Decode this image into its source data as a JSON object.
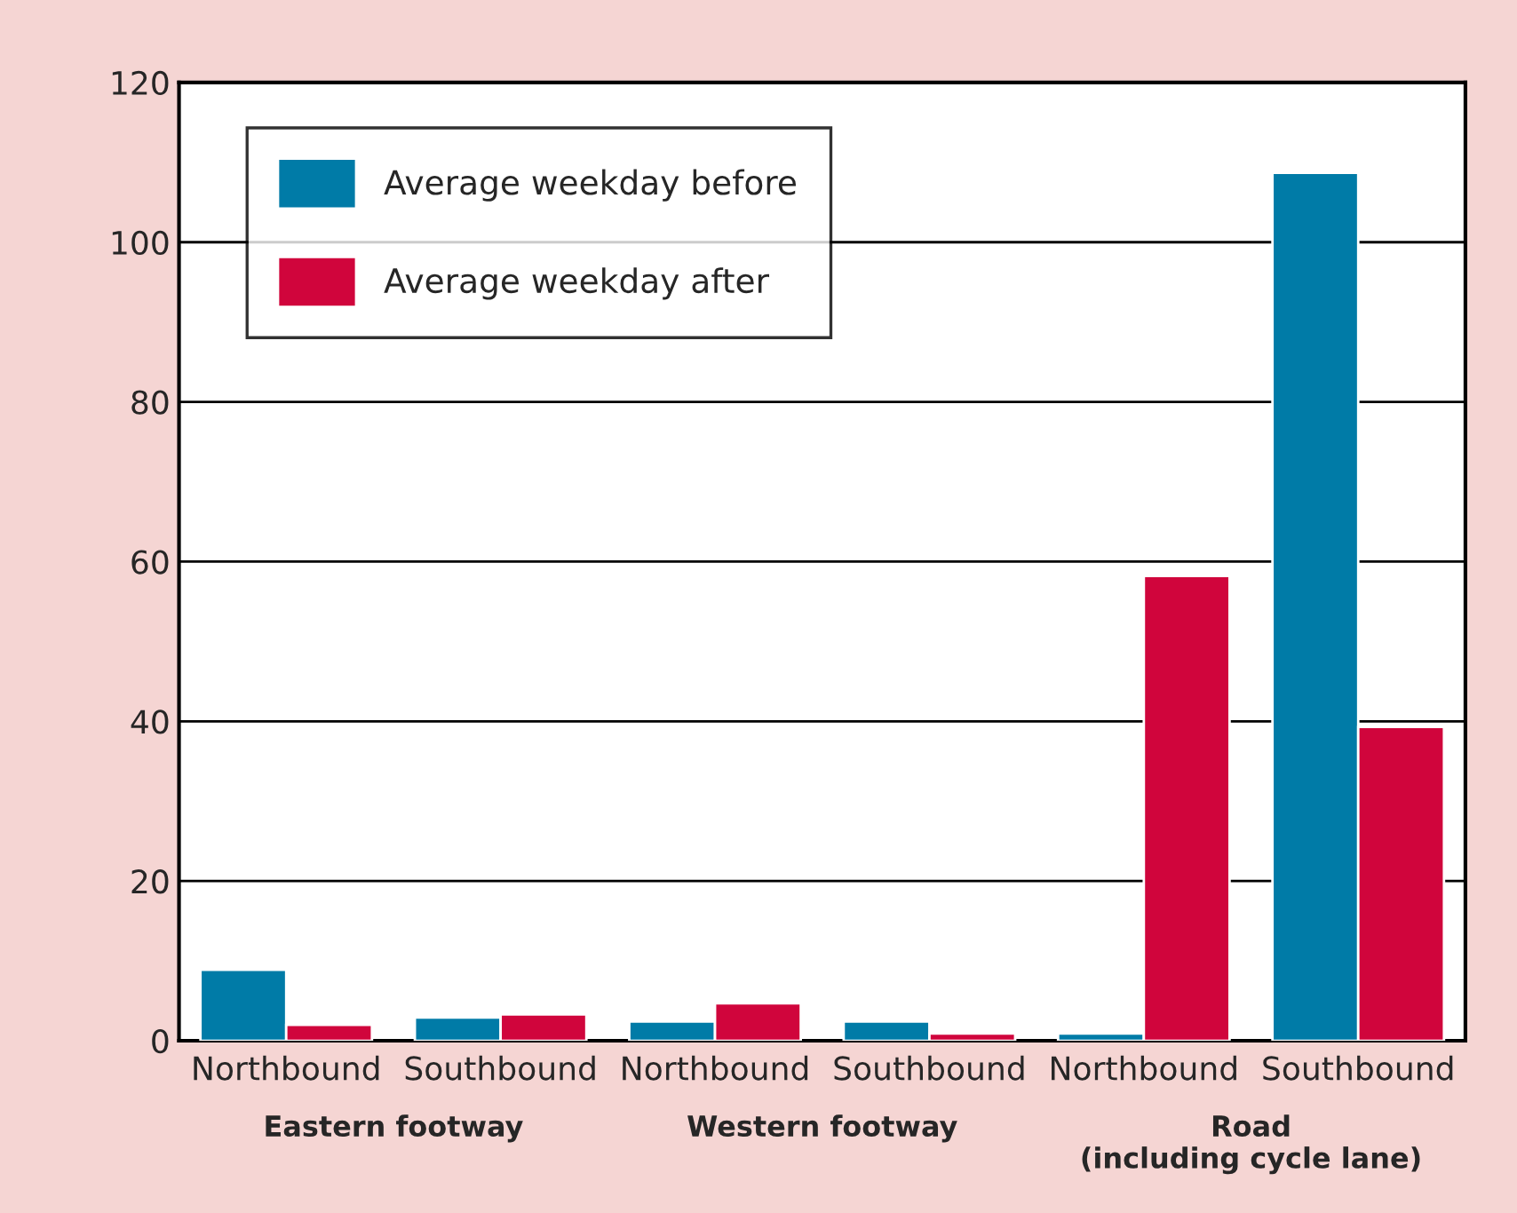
{
  "chart_data": {
    "type": "bar",
    "categories": [
      "Northbound",
      "Southbound",
      "Northbound",
      "Southbound",
      "Northbound",
      "Southbound"
    ],
    "series": [
      {
        "name": "Average weekday before",
        "color": "#007ba7",
        "values": [
          8.9,
          2.9,
          2.4,
          2.4,
          0.9,
          108.7
        ]
      },
      {
        "name": "Average weekday after",
        "color": "#d0053c",
        "values": [
          2.0,
          3.3,
          4.7,
          0.9,
          58.2,
          39.3
        ]
      }
    ],
    "annotations": [
      "Eastern footway",
      "Western footway",
      "Road\n(including cycle lane)"
    ],
    "ylim": [
      0,
      120
    ],
    "yticks": [
      0,
      20,
      40,
      60,
      80,
      100,
      120
    ],
    "grid": "y",
    "legend": "top left"
  }
}
